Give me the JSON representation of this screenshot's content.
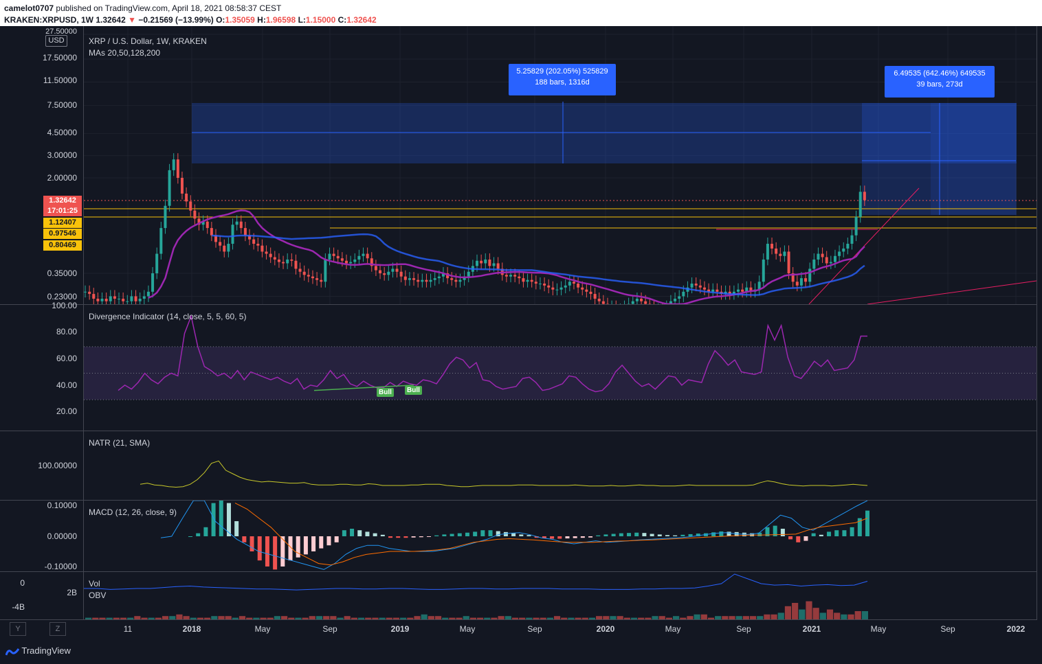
{
  "header": {
    "author": "camelot0707",
    "published": "published on TradingView.com, April 18, 2021 08:58:37 CEST",
    "symbol": "KRAKEN:XRPUSD, 1W",
    "last": "1.32642",
    "arrow": "▼",
    "change": "−0.21569 (−13.99%)",
    "o_label": "O:",
    "o": "1.35059",
    "h_label": "H:",
    "h": "1.96598",
    "l_label": "L:",
    "l": "1.15000",
    "c_label": "C:",
    "c": "1.32642"
  },
  "main_pane": {
    "title": "XRP / U.S. Dollar, 1W, KRAKEN",
    "mas": "MAs 20,50,128,200",
    "currency": "USD",
    "price_labels": [
      "27.50000",
      "17.50000",
      "11.50000",
      "7.50000",
      "4.50000",
      "3.00000",
      "2.00000",
      "0.35000",
      "0.23000"
    ],
    "tags": {
      "last_price": "1.32642",
      "countdown": "17:01:25",
      "level1": "1.12407",
      "level2": "0.97546",
      "level3": "0.80469"
    },
    "measure1": {
      "line1": "5.25829 (202.05%) 525829",
      "line2": "188 bars, 1316d"
    },
    "measure2": {
      "line1": "6.49535 (642.46%) 649535",
      "line2": "39 bars, 273d"
    }
  },
  "divergence_pane": {
    "title": "Divergence Indicator (14, close, 5, 5, 60, 5)",
    "labels": [
      "100.00",
      "80.00",
      "60.00",
      "40.00",
      "20.00"
    ],
    "bull1": "Bull",
    "bull2": "Bull",
    "series": [
      37,
      41,
      38,
      43,
      50,
      45,
      42,
      47,
      50,
      48,
      80,
      93,
      70,
      55,
      52,
      48,
      50,
      46,
      52,
      45,
      51,
      49,
      47,
      45,
      47,
      44,
      42,
      46,
      38,
      41,
      40,
      45,
      52,
      46,
      49,
      42,
      40,
      44,
      41,
      39,
      39,
      43,
      40,
      44,
      42,
      41,
      45,
      44,
      42,
      49,
      57,
      62,
      60,
      54,
      58,
      45,
      44,
      40,
      38,
      39,
      40,
      46,
      47,
      43,
      37,
      38,
      40,
      42,
      48,
      47,
      42,
      38,
      36,
      37,
      42,
      51,
      56,
      50,
      44,
      40,
      42,
      38,
      43,
      48,
      47,
      41,
      45,
      44,
      43,
      57,
      67,
      62,
      56,
      60,
      51,
      50,
      49,
      51,
      86,
      75,
      86,
      62,
      48,
      46,
      52,
      59,
      55,
      60,
      52,
      53,
      54,
      60,
      78,
      78
    ],
    "colors": {
      "line": "#9c27b0",
      "band": "rgba(126,87,194,0.18)",
      "div": "#4caf50"
    }
  },
  "natr_pane": {
    "title": "NATR (21, SMA)",
    "label": "100.00000",
    "series": [
      22,
      24,
      21,
      20,
      18,
      17,
      18,
      22,
      30,
      42,
      58,
      62,
      46,
      40,
      34,
      30,
      28,
      26,
      27,
      26,
      25,
      24,
      24,
      25,
      22,
      21,
      21,
      21,
      22,
      22,
      21,
      21,
      23,
      22,
      20,
      20,
      20,
      20,
      21,
      21,
      22,
      22,
      22,
      20,
      19,
      18,
      18,
      19,
      20,
      20,
      20,
      20,
      20,
      21,
      21,
      21,
      20,
      20,
      20,
      20,
      20,
      21,
      20,
      19,
      19,
      19,
      20,
      19,
      19,
      20,
      21,
      20,
      20,
      19,
      19,
      19,
      20,
      21,
      20,
      20,
      20,
      20,
      20,
      20,
      20,
      20,
      21,
      25,
      28,
      26,
      23,
      21,
      20,
      19,
      20,
      20,
      20,
      19,
      20,
      21,
      22,
      21,
      20
    ],
    "colors": {
      "line": "#c8c82a"
    }
  },
  "macd_pane": {
    "title": "MACD (12, 26, close, 9)",
    "labels": [
      "0.10000",
      "0.00000",
      "-0.10000"
    ],
    "hist": [
      0.0,
      0.01,
      0.03,
      0.11,
      0.16,
      0.11,
      0.05,
      -0.02,
      -0.05,
      -0.08,
      -0.1,
      -0.11,
      -0.1,
      -0.08,
      -0.07,
      -0.06,
      -0.05,
      -0.04,
      -0.03,
      -0.02,
      0.02,
      0.025,
      0.02,
      0.015,
      0.01,
      0.005,
      -0.005,
      -0.005,
      -0.005,
      -0.004,
      -0.003,
      -0.002,
      0.003,
      0.006,
      0.008,
      0.01,
      0.012,
      0.015,
      0.02,
      0.02,
      0.017,
      0.014,
      0.01,
      0.006,
      0.004,
      -0.005,
      -0.007,
      -0.008,
      -0.008,
      -0.007,
      -0.006,
      -0.005,
      -0.004,
      0.003,
      0.006,
      0.008,
      0.01,
      0.011,
      0.012,
      0.011,
      0.008,
      0.006,
      0.004,
      0.003,
      0.005,
      0.007,
      0.009,
      0.01,
      0.013,
      0.016,
      0.015,
      0.014,
      0.012,
      0.01,
      0.012,
      0.03,
      0.035,
      0.025,
      -0.01,
      -0.02,
      -0.015,
      0.01,
      0.005,
      0.015,
      0.02,
      0.02,
      0.03,
      0.06,
      0.085
    ],
    "macd": [
      -0.005,
      0.0,
      0.06,
      0.14,
      0.12,
      0.05,
      0.02,
      -0.01,
      -0.03,
      -0.05,
      -0.06,
      -0.07,
      -0.08,
      -0.09,
      -0.1,
      -0.11,
      -0.09,
      -0.06,
      -0.04,
      -0.03,
      -0.03,
      -0.04,
      -0.045,
      -0.05,
      -0.05,
      -0.05,
      -0.045,
      -0.04,
      -0.03,
      -0.02,
      -0.01,
      0.005,
      0.01,
      0.012,
      0.005,
      -0.005,
      -0.01,
      -0.02,
      -0.025,
      -0.02,
      -0.015,
      -0.02,
      -0.018,
      -0.015,
      -0.012,
      -0.01,
      -0.008,
      -0.006,
      -0.004,
      0.0,
      0.005,
      0.01,
      0.012,
      0.008,
      0.006,
      0.01,
      0.04,
      0.07,
      0.06,
      0.03,
      0.02,
      0.04,
      0.06,
      0.08,
      0.1,
      0.15
    ],
    "signal": [
      0.11,
      0.09,
      0.06,
      0.03,
      -0.01,
      -0.05,
      -0.07,
      -0.09,
      -0.095,
      -0.085,
      -0.07,
      -0.06,
      -0.055,
      -0.05,
      -0.05,
      -0.05,
      -0.048,
      -0.045,
      -0.04,
      -0.03,
      -0.02,
      -0.015,
      -0.01,
      -0.008,
      -0.01,
      -0.012,
      -0.015,
      -0.018,
      -0.02,
      -0.02,
      -0.02,
      -0.018,
      -0.016,
      -0.015,
      -0.013,
      -0.012,
      -0.01,
      -0.008,
      -0.006,
      -0.004,
      -0.002,
      0.0,
      0.002,
      0.004,
      0.004,
      0.005,
      0.006,
      0.007,
      0.02,
      0.03,
      0.035,
      0.04,
      0.045,
      0.06
    ],
    "colors": {
      "up": "#26a69a",
      "up_light": "#b2dfdb",
      "down": "#ef5350",
      "down_light": "#ffcdd2",
      "macd": "#2196f3",
      "signal": "#ff6d00"
    }
  },
  "vol_pane": {
    "title": "Vol",
    "title2": "OBV",
    "labels": [
      "0",
      "2B",
      "-4B"
    ],
    "bars": [
      1,
      1,
      1,
      1,
      1,
      1,
      1,
      2,
      1,
      1,
      1,
      2,
      2,
      3,
      2,
      1,
      1,
      1,
      2,
      2,
      2,
      1,
      2,
      1,
      1,
      1,
      1,
      2,
      2,
      1,
      1,
      1,
      2,
      2,
      2,
      2,
      1,
      2,
      1,
      1,
      1,
      1,
      1,
      1,
      1,
      1,
      1,
      2,
      3,
      2,
      2,
      1,
      1,
      1,
      2,
      1,
      1,
      1,
      1,
      2,
      2,
      1,
      1,
      1,
      1,
      1,
      1,
      2,
      1,
      1,
      1,
      1,
      1,
      2,
      2,
      2,
      2,
      1,
      1,
      1,
      1,
      2,
      2,
      1,
      2,
      1,
      2,
      3,
      3,
      1,
      2,
      2,
      2,
      2,
      2,
      2,
      2,
      3,
      3,
      4,
      8,
      10,
      6,
      11,
      7,
      4,
      6,
      4,
      3,
      3,
      5,
      5
    ],
    "obv": [
      -1,
      -1,
      -1.2,
      -1.1,
      -1,
      -1,
      -0.8,
      -0.6,
      -0.5,
      -0.7,
      -0.8,
      -0.9,
      -1,
      -1.1,
      -1.1,
      -1.2,
      -1.3,
      -1.2,
      -1.1,
      -1,
      -1,
      -1.1,
      -1.1,
      -1,
      -1,
      -1.1,
      -1.2,
      -1.2,
      -1.1,
      -1,
      -1,
      -1.1,
      -1.1,
      -1,
      -1,
      -1,
      -1.1,
      -1.1,
      -1.1,
      -1.2,
      -1.2,
      -1.2,
      -1.1,
      -1.1,
      -1,
      -1,
      -0.9,
      -0.5,
      0,
      2,
      1,
      0,
      -0.3,
      -0.2,
      -0.5,
      -0.3,
      -0.2,
      -0.4,
      -0.3,
      0.5
    ]
  },
  "time_axis": [
    "11",
    "2018",
    "May",
    "Sep",
    "2019",
    "May",
    "Sep",
    "2020",
    "May",
    "Sep",
    "2021",
    "May",
    "Sep",
    "2022"
  ],
  "buttons": {
    "y": "Y",
    "z": "Z"
  },
  "footer": {
    "logo": "TradingView"
  }
}
